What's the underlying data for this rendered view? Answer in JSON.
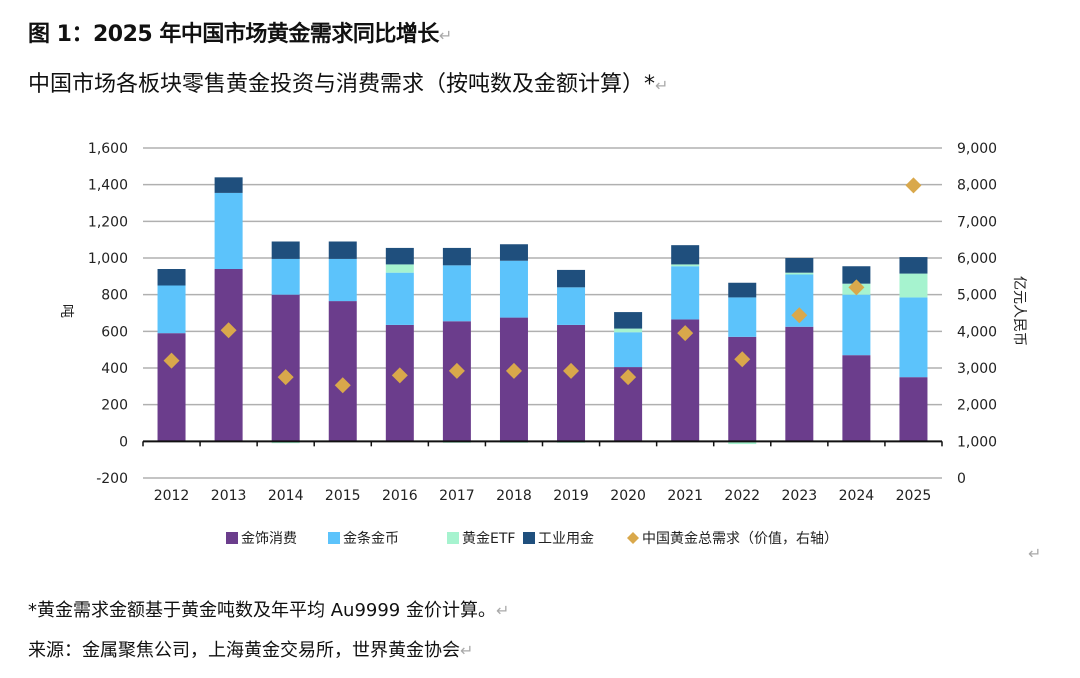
{
  "title": "图 1：2025 年中国市场黄金需求同比增长",
  "subtitle": "中国市场各板块零售黄金投资与消费需求（按吨数及金额计算）*",
  "footnote": "*黄金需求金额基于黄金吨数及年平均 Au9999 金价计算。",
  "source": "来源：金属聚焦公司，上海黄金交易所，世界黄金协会",
  "return_mark": "↵",
  "chart_data": {
    "type": "bar",
    "stacked": true,
    "categories": [
      "2012",
      "2013",
      "2014",
      "2015",
      "2016",
      "2017",
      "2018",
      "2019",
      "2020",
      "2021",
      "2022",
      "2023",
      "2024",
      "2025"
    ],
    "ylabel": "吨",
    "y2label": "亿元人民币",
    "ylim": [
      -200,
      1600
    ],
    "y2lim": [
      0,
      9000
    ],
    "yticks": [
      "1,600",
      "1,400",
      "1,200",
      "1,000",
      "800",
      "600",
      "400",
      "200",
      "0",
      "-200"
    ],
    "y2ticks": [
      "9,000",
      "8,000",
      "7,000",
      "6,000",
      "5,000",
      "4,000",
      "3,000",
      "2,000",
      "1,000",
      "0"
    ],
    "grid": true,
    "legend": "bottom",
    "series": [
      {
        "name": "金饰消费",
        "color": "#6b3d8c",
        "axis": "left",
        "values": [
          590,
          940,
          800,
          765,
          635,
          655,
          675,
          635,
          405,
          665,
          570,
          625,
          470,
          350
        ]
      },
      {
        "name": "金条金币",
        "color": "#5cc3fb",
        "axis": "left",
        "values": [
          260,
          415,
          195,
          230,
          285,
          305,
          310,
          205,
          190,
          290,
          215,
          285,
          330,
          435
        ]
      },
      {
        "name": "黄金ETF",
        "color": "#a6f3cf",
        "axis": "left",
        "values": [
          0,
          0,
          -10,
          0,
          45,
          -8,
          -8,
          -8,
          20,
          10,
          -15,
          10,
          60,
          130
        ]
      },
      {
        "name": "工业用金",
        "color": "#1f4f7d",
        "axis": "left",
        "values": [
          90,
          85,
          95,
          95,
          90,
          95,
          90,
          95,
          90,
          105,
          80,
          80,
          95,
          90
        ]
      },
      {
        "name": "中国黄金总需求（价值，右轴）",
        "color": "#d9a84b",
        "axis": "right",
        "type": "scatter",
        "marker": "diamond",
        "values": [
          3200,
          4030,
          2750,
          2530,
          2800,
          2920,
          2920,
          2920,
          2750,
          3950,
          3240,
          4440,
          5200,
          7980
        ]
      }
    ]
  }
}
